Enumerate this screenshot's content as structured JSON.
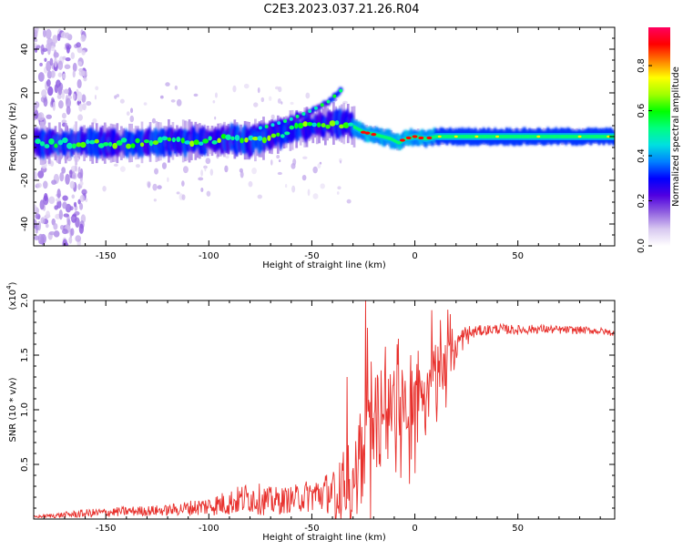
{
  "title": "C2E3.2023.037.21.26.R04",
  "chart_data": [
    {
      "type": "heatmap",
      "xlabel": "Height of straight line (km)",
      "ylabel": "Frequency (Hz)",
      "xlim": [
        -185,
        97
      ],
      "ylim": [
        -50,
        50
      ],
      "xticks": [
        -150,
        -100,
        -50,
        0,
        50
      ],
      "yticks": [
        -40,
        -20,
        0,
        20,
        40
      ],
      "colorbar": {
        "label": "Normalized spectral amplitude",
        "range": [
          0,
          0.97
        ],
        "ticks": [
          0.0,
          0.2,
          0.4,
          0.6,
          0.8
        ],
        "colormap": [
          "#ffffff",
          "#d8c8f0",
          "#9060e0",
          "#5000e0",
          "#0000ff",
          "#0080ff",
          "#00e0e0",
          "#00ff80",
          "#00ff00",
          "#a0ff00",
          "#ffff00",
          "#ff8000",
          "#ff0000",
          "#ff0060"
        ]
      },
      "ridge": {
        "x": [
          -185,
          -160,
          -140,
          -120,
          -100,
          -90,
          -80,
          -70,
          -60,
          -50,
          -40,
          -33,
          -25,
          -20,
          -12,
          -8,
          -5,
          0,
          5,
          10,
          20,
          40,
          60,
          80,
          97
        ],
        "y": [
          -3,
          -3,
          -3,
          -2,
          -2,
          -1,
          -2,
          0,
          3,
          5,
          6,
          6,
          2,
          1,
          -1,
          -3,
          -1,
          0,
          -1,
          0,
          0,
          0,
          0,
          0,
          0
        ]
      },
      "upper_branch": {
        "x": [
          -80,
          -70,
          -60,
          -50,
          -42,
          -36
        ],
        "y": [
          3,
          5,
          8,
          12,
          16,
          21
        ]
      },
      "strong_segment_x": [
        -28,
        10
      ]
    },
    {
      "type": "line",
      "xlabel": "Height of straight line (km)",
      "ylabel": "SNR (10 * v/v)",
      "exponent_label": "(x10",
      "exponent": "4",
      "exponent_close": ")",
      "xlim": [
        -185,
        97
      ],
      "ylim": [
        0,
        20000
      ],
      "xticks": [
        -150,
        -100,
        -50,
        0,
        50
      ],
      "yticks": [
        5000,
        10000,
        15000,
        20000
      ],
      "ytick_labels": [
        "0.5",
        "1.0",
        "1.5",
        "2.0"
      ],
      "color": "#e8302c",
      "trend": {
        "x": [
          -185,
          -160,
          -140,
          -120,
          -100,
          -90,
          -80,
          -70,
          -60,
          -50,
          -40,
          -35,
          -30,
          -25,
          -20,
          -15,
          -10,
          -5,
          0,
          5,
          10,
          15,
          20,
          25,
          30,
          40,
          50,
          60,
          70,
          80,
          90,
          97
        ],
        "y": [
          200,
          500,
          700,
          800,
          1200,
          1500,
          2000,
          1600,
          1800,
          2200,
          2500,
          3000,
          4000,
          6000,
          8500,
          9500,
          10500,
          10000,
          10500,
          11000,
          13000,
          14500,
          16000,
          16800,
          17200,
          17400,
          17300,
          17400,
          17300,
          17300,
          17200,
          17000
        ]
      },
      "noise": {
        "x": [
          -185,
          -160,
          -120,
          -100,
          -80,
          -60,
          -40,
          -30,
          -20,
          0,
          10,
          20,
          30,
          97
        ],
        "y": [
          100,
          400,
          500,
          900,
          1500,
          1200,
          2000,
          3500,
          4500,
          4000,
          3000,
          1500,
          500,
          300
        ]
      },
      "spikes": [
        {
          "x": -24,
          "y": 20000
        },
        {
          "x": -23,
          "y": 17500
        },
        {
          "x": -8,
          "y": 16500
        },
        {
          "x": -2,
          "y": 15000
        },
        {
          "x": 0,
          "y": 4200
        },
        {
          "x": -33,
          "y": 13000
        }
      ]
    }
  ]
}
